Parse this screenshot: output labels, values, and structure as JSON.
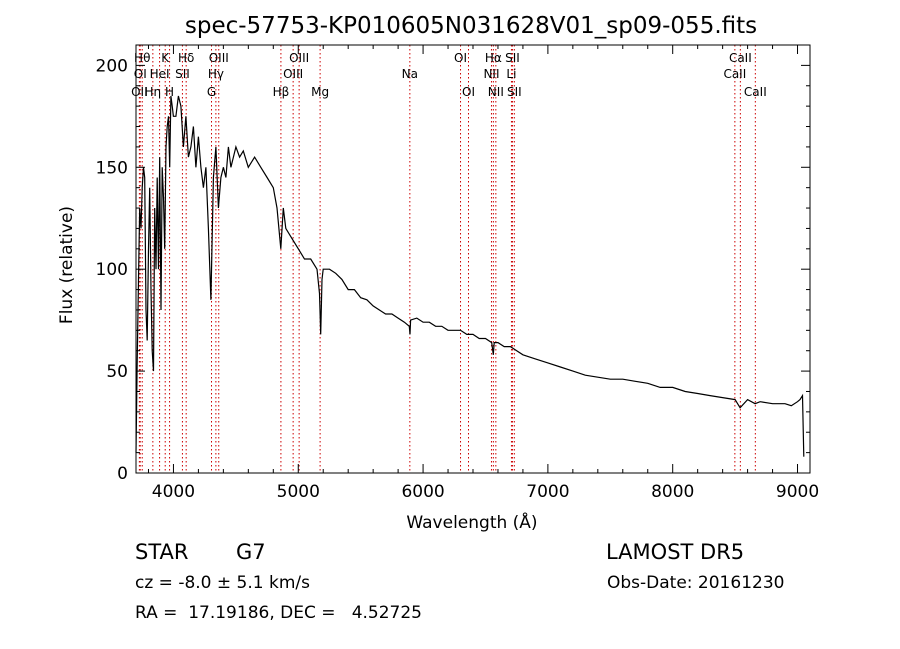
{
  "chart_data": {
    "type": "line",
    "title": "spec-57753-KP010605N031628V01_sp09-055.fits",
    "xlabel": "Wavelength (Å)",
    "ylabel": "Flux (relative)",
    "xlim": [
      3700,
      9100
    ],
    "ylim": [
      0,
      210
    ],
    "xticks": [
      4000,
      5000,
      6000,
      7000,
      8000,
      9000
    ],
    "yticks": [
      0,
      50,
      100,
      150,
      200
    ],
    "grid": false,
    "series": [
      {
        "color": "#000000",
        "x": [
          3700,
          3710,
          3720,
          3730,
          3740,
          3750,
          3760,
          3770,
          3780,
          3790,
          3800,
          3810,
          3820,
          3830,
          3840,
          3850,
          3860,
          3870,
          3880,
          3890,
          3900,
          3910,
          3920,
          3930,
          3940,
          3950,
          3960,
          3970,
          3980,
          3990,
          4000,
          4020,
          4040,
          4060,
          4080,
          4100,
          4120,
          4140,
          4160,
          4180,
          4200,
          4220,
          4240,
          4260,
          4280,
          4300,
          4320,
          4340,
          4360,
          4380,
          4400,
          4420,
          4440,
          4460,
          4480,
          4500,
          4530,
          4560,
          4600,
          4650,
          4700,
          4750,
          4800,
          4830,
          4860,
          4880,
          4900,
          4950,
          5000,
          5050,
          5100,
          5150,
          5170,
          5180,
          5190,
          5200,
          5250,
          5300,
          5350,
          5400,
          5450,
          5500,
          5550,
          5600,
          5650,
          5700,
          5750,
          5800,
          5850,
          5890,
          5895,
          5900,
          5950,
          6000,
          6050,
          6100,
          6150,
          6200,
          6250,
          6300,
          6350,
          6400,
          6450,
          6500,
          6550,
          6563,
          6570,
          6600,
          6650,
          6700,
          6750,
          6800,
          6900,
          7000,
          7100,
          7200,
          7300,
          7400,
          7500,
          7600,
          7700,
          7800,
          7900,
          8000,
          8100,
          8200,
          8300,
          8400,
          8500,
          8540,
          8600,
          8660,
          8700,
          8800,
          8900,
          8950,
          9000,
          9020,
          9040,
          9050
        ],
        "y": [
          10,
          55,
          95,
          130,
          120,
          140,
          150,
          145,
          80,
          65,
          110,
          140,
          90,
          60,
          50,
          130,
          100,
          145,
          100,
          155,
          80,
          150,
          135,
          110,
          160,
          170,
          175,
          150,
          185,
          180,
          175,
          175,
          185,
          180,
          160,
          175,
          155,
          160,
          170,
          150,
          165,
          150,
          140,
          150,
          120,
          85,
          145,
          160,
          130,
          145,
          150,
          145,
          160,
          150,
          155,
          160,
          155,
          158,
          150,
          155,
          150,
          145,
          140,
          130,
          110,
          130,
          120,
          115,
          110,
          105,
          105,
          100,
          88,
          68,
          95,
          100,
          100,
          98,
          95,
          90,
          90,
          86,
          85,
          82,
          80,
          78,
          78,
          76,
          74,
          72,
          68,
          75,
          76,
          74,
          74,
          72,
          72,
          70,
          70,
          70,
          68,
          68,
          66,
          66,
          64,
          58,
          64,
          64,
          62,
          62,
          60,
          58,
          56,
          54,
          52,
          50,
          48,
          47,
          46,
          46,
          45,
          44,
          42,
          42,
          40,
          39,
          38,
          37,
          36,
          32,
          36,
          34,
          35,
          34,
          34,
          33,
          35,
          36,
          38,
          8
        ]
      }
    ],
    "spectral_lines": [
      {
        "label": "OII",
        "x": 3727,
        "row": 3
      },
      {
        "label": "OI",
        "x": 3734,
        "row": 2
      },
      {
        "label": "Hθ",
        "x": 3750,
        "row": 1
      },
      {
        "label": "Hη",
        "x": 3835,
        "row": 3
      },
      {
        "label": "HeI",
        "x": 3889,
        "row": 2
      },
      {
        "label": "K",
        "x": 3934,
        "row": 1
      },
      {
        "label": "H",
        "x": 3969,
        "row": 3
      },
      {
        "label": "SII",
        "x": 4072,
        "row": 2
      },
      {
        "label": "Hδ",
        "x": 4102,
        "row": 1
      },
      {
        "label": "G",
        "x": 4305,
        "row": 3
      },
      {
        "label": "Hγ",
        "x": 4340,
        "row": 2
      },
      {
        "label": "OIII",
        "x": 4363,
        "row": 1
      },
      {
        "label": "Hβ",
        "x": 4861,
        "row": 3
      },
      {
        "label": "OIII",
        "x": 4959,
        "row": 2
      },
      {
        "label": "OIII",
        "x": 5007,
        "row": 1
      },
      {
        "label": "Mg",
        "x": 5175,
        "row": 3
      },
      {
        "label": "Na",
        "x": 5894,
        "row": 2
      },
      {
        "label": "OI",
        "x": 6300,
        "row": 1
      },
      {
        "label": "OI",
        "x": 6364,
        "row": 3
      },
      {
        "label": "NII",
        "x": 6548,
        "row": 2
      },
      {
        "label": "Hα",
        "x": 6563,
        "row": 1
      },
      {
        "label": "NII",
        "x": 6583,
        "row": 3
      },
      {
        "label": "Li",
        "x": 6708,
        "row": 2
      },
      {
        "label": "SII",
        "x": 6716,
        "row": 1
      },
      {
        "label": "SII",
        "x": 6731,
        "row": 3
      },
      {
        "label": "CaII",
        "x": 8498,
        "row": 2
      },
      {
        "label": "CaII",
        "x": 8542,
        "row": 1
      },
      {
        "label": "CaII",
        "x": 8662,
        "row": 3
      }
    ]
  },
  "info": {
    "class": "STAR",
    "subclass": "G7",
    "survey": "LAMOST DR5",
    "redshift": "cz = -8.0 ± 5.1 km/s",
    "obs_date": "Obs-Date: 20161230",
    "coords": "RA =  17.19186, DEC =   4.52725"
  }
}
